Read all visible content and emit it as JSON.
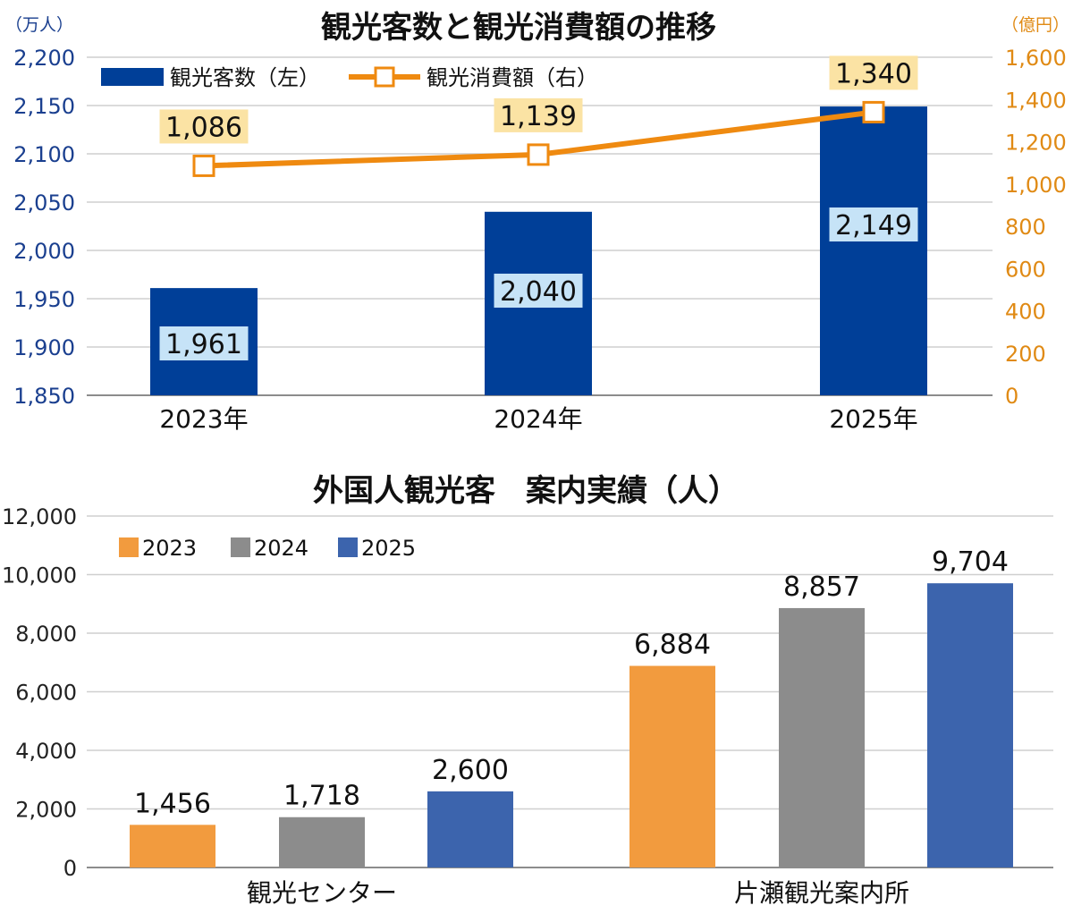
{
  "chart_data": [
    {
      "type": "bar+line",
      "title": "観光客数と観光消費額の推移",
      "categories": [
        "2023年",
        "2024年",
        "2025年"
      ],
      "left_axis": {
        "unit": "（万人）",
        "min": 1850,
        "max": 2200,
        "ticks": [
          "1,850",
          "1,900",
          "1,950",
          "2,000",
          "2,050",
          "2,100",
          "2,150",
          "2,200"
        ]
      },
      "right_axis": {
        "unit": "（億円）",
        "min": 0,
        "max": 1600,
        "ticks": [
          "0",
          "200",
          "400",
          "600",
          "800",
          "1,000",
          "1,200",
          "1,400",
          "1,600"
        ]
      },
      "series": [
        {
          "name": "観光客数（左）",
          "kind": "bar",
          "axis": "left",
          "values": [
            1961,
            2040,
            2149
          ],
          "labels": [
            "1,961",
            "2,040",
            "2,149"
          ],
          "color": "#003f98",
          "label_bg": "#c6e3f7"
        },
        {
          "name": "観光消費額（右）",
          "kind": "line",
          "axis": "right",
          "values": [
            1086,
            1139,
            1340
          ],
          "labels": [
            "1,086",
            "1,139",
            "1,340"
          ],
          "color": "#ef8a10",
          "label_bg": "#fbe3a4"
        }
      ],
      "grid": true,
      "legend": "top-left"
    },
    {
      "type": "bar",
      "title": "外国人観光客　案内実績（人）",
      "categories": [
        "観光センター",
        "片瀬観光案内所"
      ],
      "y_axis": {
        "min": 0,
        "max": 12000,
        "ticks": [
          "0",
          "2,000",
          "4,000",
          "6,000",
          "8,000",
          "10,000",
          "12,000"
        ]
      },
      "series": [
        {
          "name": "2023",
          "values": [
            1456,
            6884
          ],
          "labels": [
            "1,456",
            "6,884"
          ],
          "color": "#f29b3e"
        },
        {
          "name": "2024",
          "values": [
            1718,
            8857
          ],
          "labels": [
            "1,718",
            "8,857"
          ],
          "color": "#8c8c8c"
        },
        {
          "name": "2025",
          "values": [
            2600,
            9704
          ],
          "labels": [
            "2,600",
            "9,704"
          ],
          "color": "#3c64ad"
        }
      ],
      "grid": true,
      "legend": "top-left"
    }
  ]
}
